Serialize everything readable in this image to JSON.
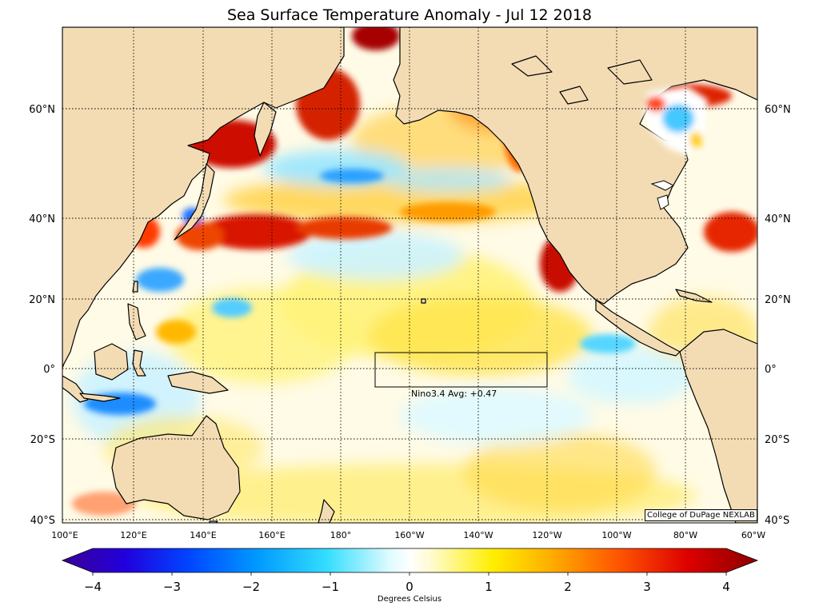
{
  "title": "Sea Surface Temperature Anomaly - Jul 12 2018",
  "credit": "College of DuPage NEXLAB",
  "nino": {
    "label": "Nino3.4 Avg: +0.47"
  },
  "lat_labels": [
    "60°N",
    "40°N",
    "20°N",
    "0°",
    "20°S",
    "40°S"
  ],
  "lon_labels": [
    "100°E",
    "120°E",
    "140°E",
    "160°E",
    "180°",
    "160°W",
    "140°W",
    "120°W",
    "100°W",
    "80°W",
    "60°W"
  ],
  "colorbar": {
    "ticks": [
      "−4",
      "−3",
      "−2",
      "−1",
      "0",
      "1",
      "2",
      "3",
      "4"
    ],
    "label": "Degrees Celsius",
    "min": -4,
    "max": 4
  },
  "colors": {
    "land": "#f3dcb4",
    "ocean_neutral": "#ffffff",
    "warm": "#cc0000",
    "cool": "#22aaff"
  }
}
